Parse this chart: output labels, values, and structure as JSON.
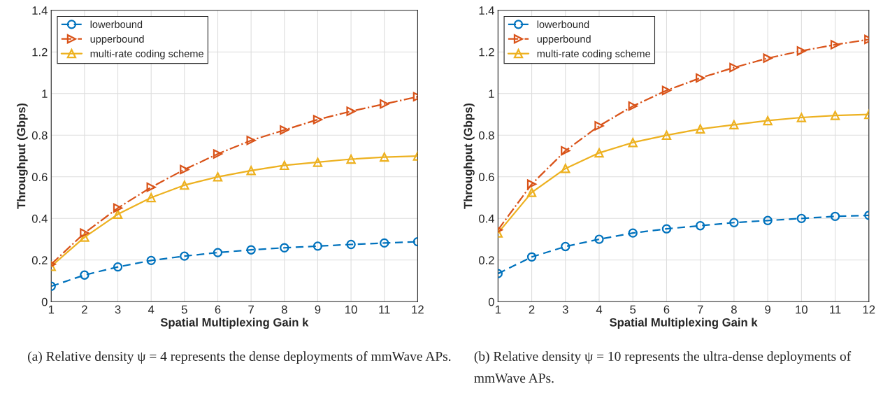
{
  "chart_data": [
    {
      "type": "line",
      "xlabel": "Spatial Multiplexing Gain k",
      "ylabel": "Throughput (Gbps)",
      "x": [
        1,
        2,
        3,
        4,
        5,
        6,
        7,
        8,
        9,
        10,
        11,
        12
      ],
      "xlim": [
        1,
        12
      ],
      "xticks": [
        1,
        2,
        3,
        4,
        5,
        6,
        7,
        8,
        9,
        10,
        11,
        12
      ],
      "ylim": [
        0,
        1.4
      ],
      "yticks": [
        0,
        0.2,
        0.4,
        0.6,
        0.8,
        1,
        1.2,
        1.4
      ],
      "grid": true,
      "legend": "top left",
      "series": [
        {
          "name": "lowerbound",
          "color": "#0072bd",
          "marker": "circle",
          "line_style": "dashed",
          "values": [
            0.074,
            0.128,
            0.167,
            0.198,
            0.219,
            0.236,
            0.249,
            0.259,
            0.267,
            0.275,
            0.282,
            0.288
          ]
        },
        {
          "name": "upperbound",
          "color": "#d95319",
          "marker": "triangle-right",
          "line_style": "dashdot",
          "values": [
            0.18,
            0.33,
            0.45,
            0.55,
            0.635,
            0.71,
            0.775,
            0.825,
            0.875,
            0.915,
            0.95,
            0.985
          ]
        },
        {
          "name": "multi-rate coding scheme",
          "color": "#edb120",
          "marker": "triangle",
          "line_style": "solid",
          "values": [
            0.17,
            0.31,
            0.42,
            0.5,
            0.56,
            0.6,
            0.63,
            0.655,
            0.67,
            0.685,
            0.695,
            0.7
          ]
        }
      ],
      "annotations": [
        "(a) Relative density ψ = 4 represents the dense deployments of mmWave APs."
      ]
    },
    {
      "type": "line",
      "xlabel": "Spatial Multiplexing Gain k",
      "ylabel": "Throughput (Gbps)",
      "x": [
        1,
        2,
        3,
        4,
        5,
        6,
        7,
        8,
        9,
        10,
        11,
        12
      ],
      "xlim": [
        1,
        12
      ],
      "xticks": [
        1,
        2,
        3,
        4,
        5,
        6,
        7,
        8,
        9,
        10,
        11,
        12
      ],
      "ylim": [
        0,
        1.4
      ],
      "yticks": [
        0,
        0.2,
        0.4,
        0.6,
        0.8,
        1,
        1.2,
        1.4
      ],
      "grid": true,
      "legend": "top left",
      "series": [
        {
          "name": "lowerbound",
          "color": "#0072bd",
          "marker": "circle",
          "line_style": "dashed",
          "values": [
            0.135,
            0.215,
            0.265,
            0.3,
            0.33,
            0.35,
            0.365,
            0.38,
            0.39,
            0.4,
            0.41,
            0.415
          ]
        },
        {
          "name": "upperbound",
          "color": "#d95319",
          "marker": "triangle-right",
          "line_style": "dashdot",
          "values": [
            0.345,
            0.565,
            0.725,
            0.845,
            0.94,
            1.015,
            1.075,
            1.125,
            1.17,
            1.205,
            1.235,
            1.26
          ]
        },
        {
          "name": "multi-rate coding scheme",
          "color": "#edb120",
          "marker": "triangle",
          "line_style": "solid",
          "values": [
            0.33,
            0.525,
            0.64,
            0.715,
            0.765,
            0.8,
            0.83,
            0.85,
            0.87,
            0.885,
            0.895,
            0.9
          ]
        }
      ],
      "annotations": [
        "(b) Relative density ψ = 10 represents the ultra-dense deployments of mmWave APs."
      ]
    }
  ]
}
